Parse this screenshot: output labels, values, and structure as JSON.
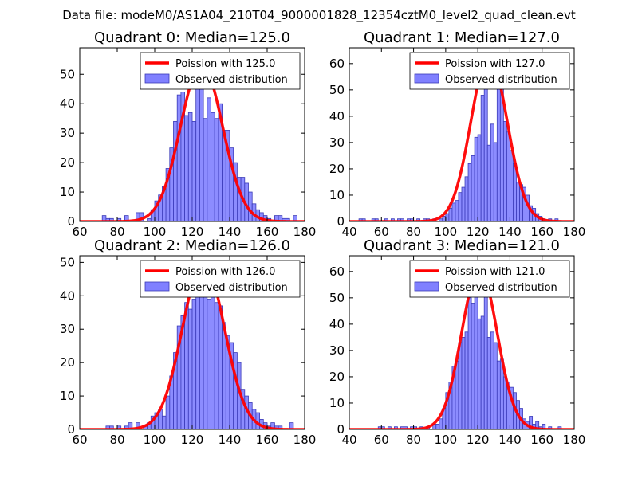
{
  "figure_title": "Data file: modeM0/AS1A04_210T04_9000001828_12354cztM0_level2_quad_clean.evt",
  "colors": {
    "bar_fill": "#8080ff",
    "bar_edge": "#3b3bb8",
    "poisson_line": "#ff0000",
    "axis": "#000000"
  },
  "chart_data": [
    {
      "type": "bar",
      "title": "Quadrant 0: Median=125.0",
      "xlim": [
        60,
        180
      ],
      "ylim": [
        0,
        59
      ],
      "xticks": [
        60,
        80,
        100,
        120,
        140,
        160,
        180
      ],
      "yticks": [
        0,
        10,
        20,
        30,
        40,
        50
      ],
      "bin_width": 2,
      "legend": [
        "Poission with 125.0",
        "Observed distribution"
      ],
      "legend_position": "top-right",
      "poisson_mean": 125.0,
      "poisson_peak": 53.5,
      "bins": [
        [
          72,
          2
        ],
        [
          74,
          1
        ],
        [
          76,
          1
        ],
        [
          80,
          1
        ],
        [
          84,
          2
        ],
        [
          90,
          3
        ],
        [
          92,
          3
        ],
        [
          96,
          1
        ],
        [
          98,
          4
        ],
        [
          100,
          7
        ],
        [
          102,
          9
        ],
        [
          104,
          12
        ],
        [
          106,
          18
        ],
        [
          108,
          25
        ],
        [
          110,
          34
        ],
        [
          112,
          43
        ],
        [
          114,
          44
        ],
        [
          116,
          36
        ],
        [
          118,
          37
        ],
        [
          120,
          34
        ],
        [
          122,
          48
        ],
        [
          124,
          51
        ],
        [
          126,
          35
        ],
        [
          128,
          42
        ],
        [
          130,
          37
        ],
        [
          132,
          35
        ],
        [
          134,
          40
        ],
        [
          136,
          31
        ],
        [
          138,
          31
        ],
        [
          140,
          25
        ],
        [
          142,
          20
        ],
        [
          144,
          15
        ],
        [
          146,
          15
        ],
        [
          148,
          13
        ],
        [
          150,
          10
        ],
        [
          152,
          6
        ],
        [
          154,
          4
        ],
        [
          156,
          3
        ],
        [
          158,
          2
        ],
        [
          160,
          1
        ],
        [
          164,
          2
        ],
        [
          166,
          2
        ],
        [
          168,
          1
        ],
        [
          170,
          1
        ],
        [
          174,
          2
        ]
      ]
    },
    {
      "type": "bar",
      "title": "Quadrant 1: Median=127.0",
      "xlim": [
        40,
        180
      ],
      "ylim": [
        0,
        66
      ],
      "xticks": [
        40,
        60,
        80,
        100,
        120,
        140,
        160,
        180
      ],
      "yticks": [
        0,
        10,
        20,
        30,
        40,
        50,
        60
      ],
      "bin_width": 2,
      "legend": [
        "Poission with 127.0",
        "Observed distribution"
      ],
      "legend_position": "top-right",
      "poisson_mean": 127.0,
      "poisson_peak": 63,
      "bins": [
        [
          46,
          1
        ],
        [
          48,
          1
        ],
        [
          54,
          1
        ],
        [
          56,
          1
        ],
        [
          62,
          1
        ],
        [
          66,
          1
        ],
        [
          70,
          1
        ],
        [
          72,
          1
        ],
        [
          76,
          1
        ],
        [
          78,
          1
        ],
        [
          82,
          1
        ],
        [
          86,
          1
        ],
        [
          88,
          1
        ],
        [
          92,
          1
        ],
        [
          96,
          1
        ],
        [
          98,
          2
        ],
        [
          100,
          3
        ],
        [
          102,
          5
        ],
        [
          104,
          7
        ],
        [
          106,
          8
        ],
        [
          108,
          11
        ],
        [
          110,
          13
        ],
        [
          112,
          17
        ],
        [
          114,
          22
        ],
        [
          116,
          25
        ],
        [
          118,
          32
        ],
        [
          120,
          33
        ],
        [
          122,
          48
        ],
        [
          124,
          53
        ],
        [
          126,
          29
        ],
        [
          128,
          37
        ],
        [
          130,
          30
        ],
        [
          132,
          60
        ],
        [
          134,
          55
        ],
        [
          136,
          38
        ],
        [
          138,
          34
        ],
        [
          140,
          27
        ],
        [
          142,
          22
        ],
        [
          144,
          15
        ],
        [
          146,
          14
        ],
        [
          148,
          13
        ],
        [
          150,
          10
        ],
        [
          152,
          6
        ],
        [
          154,
          5
        ],
        [
          156,
          3
        ],
        [
          158,
          2
        ],
        [
          160,
          1
        ],
        [
          164,
          1
        ],
        [
          168,
          1
        ]
      ]
    },
    {
      "type": "bar",
      "title": "Quadrant 2: Median=126.0",
      "xlim": [
        60,
        180
      ],
      "ylim": [
        0,
        52
      ],
      "xticks": [
        60,
        80,
        100,
        120,
        140,
        160,
        180
      ],
      "yticks": [
        0,
        10,
        20,
        30,
        40,
        50
      ],
      "bin_width": 2,
      "legend": [
        "Poission with 126.0",
        "Observed distribution"
      ],
      "legend_position": "top-right",
      "poisson_mean": 126.0,
      "poisson_peak": 50,
      "bins": [
        [
          74,
          1
        ],
        [
          76,
          1
        ],
        [
          80,
          1
        ],
        [
          84,
          1
        ],
        [
          86,
          2
        ],
        [
          90,
          2
        ],
        [
          94,
          1
        ],
        [
          96,
          2
        ],
        [
          98,
          4
        ],
        [
          100,
          5
        ],
        [
          102,
          6
        ],
        [
          104,
          4
        ],
        [
          106,
          10
        ],
        [
          108,
          16
        ],
        [
          110,
          23
        ],
        [
          112,
          31
        ],
        [
          114,
          34
        ],
        [
          116,
          38
        ],
        [
          118,
          36
        ],
        [
          120,
          39
        ],
        [
          122,
          42
        ],
        [
          124,
          42
        ],
        [
          126,
          43
        ],
        [
          128,
          39
        ],
        [
          130,
          42
        ],
        [
          132,
          38
        ],
        [
          134,
          37
        ],
        [
          136,
          32
        ],
        [
          138,
          28
        ],
        [
          140,
          26
        ],
        [
          142,
          23
        ],
        [
          144,
          20
        ],
        [
          146,
          12
        ],
        [
          148,
          10
        ],
        [
          150,
          8
        ],
        [
          152,
          6
        ],
        [
          154,
          5
        ],
        [
          156,
          3
        ],
        [
          158,
          2
        ],
        [
          160,
          1
        ],
        [
          162,
          2
        ],
        [
          164,
          1
        ],
        [
          166,
          1
        ],
        [
          172,
          2
        ]
      ]
    },
    {
      "type": "bar",
      "title": "Quadrant 3: Median=121.0",
      "xlim": [
        40,
        180
      ],
      "ylim": [
        0,
        66
      ],
      "xticks": [
        40,
        60,
        80,
        100,
        120,
        140,
        160,
        180
      ],
      "yticks": [
        0,
        10,
        20,
        30,
        40,
        50,
        60
      ],
      "bin_width": 2,
      "legend": [
        "Poission with 121.0",
        "Observed distribution"
      ],
      "legend_position": "top-right",
      "poisson_mean": 121.0,
      "poisson_peak": 61,
      "bins": [
        [
          58,
          1
        ],
        [
          60,
          1
        ],
        [
          64,
          1
        ],
        [
          68,
          1
        ],
        [
          72,
          1
        ],
        [
          74,
          1
        ],
        [
          78,
          1
        ],
        [
          80,
          1
        ],
        [
          84,
          1
        ],
        [
          88,
          1
        ],
        [
          92,
          2
        ],
        [
          94,
          2
        ],
        [
          96,
          4
        ],
        [
          98,
          8
        ],
        [
          100,
          14
        ],
        [
          102,
          18
        ],
        [
          104,
          24
        ],
        [
          106,
          26
        ],
        [
          108,
          33
        ],
        [
          110,
          35
        ],
        [
          112,
          37
        ],
        [
          114,
          50
        ],
        [
          116,
          48
        ],
        [
          118,
          53
        ],
        [
          120,
          42
        ],
        [
          122,
          43
        ],
        [
          124,
          52
        ],
        [
          126,
          35
        ],
        [
          128,
          37
        ],
        [
          130,
          33
        ],
        [
          132,
          26
        ],
        [
          134,
          27
        ],
        [
          136,
          20
        ],
        [
          138,
          18
        ],
        [
          140,
          16
        ],
        [
          142,
          14
        ],
        [
          144,
          11
        ],
        [
          146,
          8
        ],
        [
          148,
          4
        ],
        [
          150,
          3
        ],
        [
          152,
          5
        ],
        [
          154,
          2
        ],
        [
          156,
          3
        ],
        [
          158,
          1
        ],
        [
          160,
          2
        ],
        [
          164,
          1
        ],
        [
          170,
          1
        ]
      ]
    }
  ]
}
